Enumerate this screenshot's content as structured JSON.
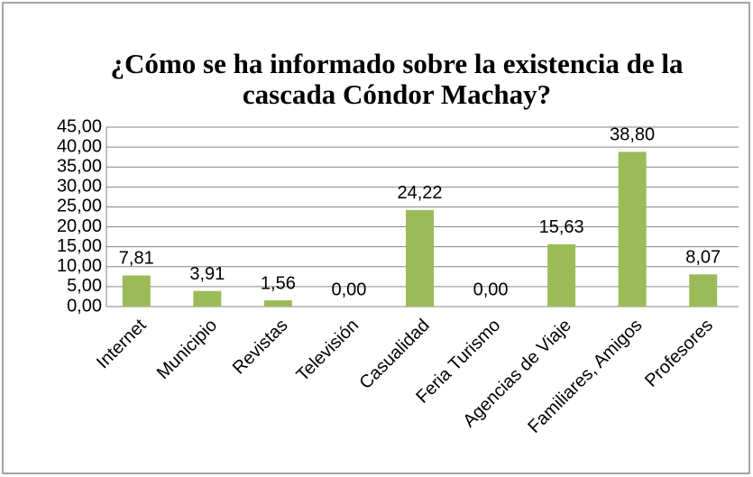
{
  "chart_data": {
    "type": "bar",
    "title": [
      "¿Cómo se ha informado sobre la existencia de la",
      "cascada Cóndor Machay?"
    ],
    "categories": [
      "Internet",
      "Municipio",
      "Revistas",
      "Televisión",
      "Casualidad",
      "Feria Turismo",
      "Agencias de Viaje",
      "Familiares, Amigos",
      "Profesores"
    ],
    "values": [
      7.81,
      3.91,
      1.56,
      0,
      24.22,
      0,
      15.63,
      38.8,
      8.07
    ],
    "value_labels": [
      "7,81",
      "3,91",
      "1,56",
      "0,00",
      "24,22",
      "0,00",
      "15,63",
      "38,80",
      "8,07"
    ],
    "color": "#9bbb59",
    "ylim": [
      0,
      45
    ],
    "yticks": [
      {
        "value": 0,
        "label": "0,00"
      },
      {
        "value": 5,
        "label": "5,00"
      },
      {
        "value": 10,
        "label": "10,00"
      },
      {
        "value": 15,
        "label": "15,00"
      },
      {
        "value": 20,
        "label": "20,00"
      },
      {
        "value": 25,
        "label": "25,00"
      },
      {
        "value": 30,
        "label": "30,00"
      },
      {
        "value": 35,
        "label": "35,00"
      },
      {
        "value": 40,
        "label": "40,00"
      },
      {
        "value": 45,
        "label": "45,00"
      }
    ],
    "grid": true
  }
}
